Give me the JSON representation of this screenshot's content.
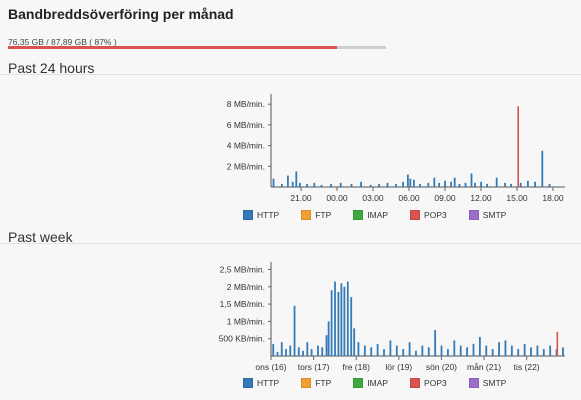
{
  "title": "Bandbreddsöverföring per månad",
  "usage": {
    "text": "76,35 GB / 87,89 GB ( 87% )",
    "percent": 87
  },
  "sections": {
    "day_heading": "Past 24 hours",
    "week_heading": "Past week"
  },
  "legend": [
    {
      "label": "HTTP",
      "color": "#337ab7"
    },
    {
      "label": "FTP",
      "color": "#f0a030"
    },
    {
      "label": "IMAP",
      "color": "#3fa83f"
    },
    {
      "label": "POP3",
      "color": "#d9534f"
    },
    {
      "label": "SMTP",
      "color": "#9b6cc9"
    }
  ],
  "chart_data": [
    {
      "type": "bar",
      "y_ticks": [
        "8 MB/min.",
        "6 MB/min.",
        "4 MB/min.",
        "2 MB/min."
      ],
      "y_tick_values": [
        8,
        6,
        4,
        2
      ],
      "ylim": [
        0,
        8.6
      ],
      "x_ticks": [
        "21.00",
        "00.00",
        "03.00",
        "06.00",
        "09.00",
        "12.00",
        "15.00",
        "18.00"
      ],
      "x_tick_positions": [
        2.5,
        5.5,
        8.5,
        11.5,
        14.5,
        17.5,
        20.5,
        23.5
      ],
      "xlim": [
        0,
        24.5
      ],
      "series": [
        {
          "name": "HTTP",
          "points": [
            [
              0.2,
              0.8
            ],
            [
              0.9,
              0.3
            ],
            [
              1.4,
              1.1
            ],
            [
              1.8,
              0.5
            ],
            [
              2.1,
              1.5
            ],
            [
              2.4,
              0.4
            ],
            [
              3.0,
              0.3
            ],
            [
              3.6,
              0.4
            ],
            [
              4.2,
              0.2
            ],
            [
              5.0,
              0.3
            ],
            [
              5.8,
              0.4
            ],
            [
              6.7,
              0.3
            ],
            [
              7.5,
              0.5
            ],
            [
              8.3,
              0.2
            ],
            [
              9.0,
              0.3
            ],
            [
              9.7,
              0.4
            ],
            [
              10.4,
              0.3
            ],
            [
              11.0,
              0.5
            ],
            [
              11.4,
              1.2
            ],
            [
              11.6,
              0.8
            ],
            [
              11.9,
              0.7
            ],
            [
              12.4,
              0.3
            ],
            [
              13.1,
              0.4
            ],
            [
              13.6,
              0.9
            ],
            [
              14.0,
              0.4
            ],
            [
              14.5,
              0.6
            ],
            [
              15.0,
              0.5
            ],
            [
              15.3,
              0.9
            ],
            [
              15.7,
              0.3
            ],
            [
              16.2,
              0.4
            ],
            [
              16.7,
              1.3
            ],
            [
              17.0,
              0.4
            ],
            [
              17.5,
              0.5
            ],
            [
              18.0,
              0.3
            ],
            [
              18.8,
              0.9
            ],
            [
              19.5,
              0.4
            ],
            [
              20.0,
              0.3
            ],
            [
              20.8,
              0.4
            ],
            [
              21.4,
              0.6
            ],
            [
              22.0,
              0.5
            ],
            [
              22.6,
              3.5
            ],
            [
              23.2,
              0.3
            ]
          ]
        },
        {
          "name": "POP3",
          "points": [
            [
              20.6,
              7.8
            ]
          ]
        }
      ]
    },
    {
      "type": "bar",
      "y_ticks": [
        "2,5 MB/min.",
        "2 MB/min.",
        "1,5 MB/min.",
        "1 MB/min.",
        "500 KB/min."
      ],
      "y_tick_values": [
        2.5,
        2,
        1.5,
        1,
        0.5
      ],
      "ylim": [
        0,
        2.6
      ],
      "x_ticks": [
        "ons (16)",
        "tors (17)",
        "fre (18)",
        "lör (19)",
        "sön (20)",
        "mån (21)",
        "tis (22)"
      ],
      "x_tick_positions": [
        0,
        1,
        2,
        3,
        4,
        5,
        6
      ],
      "xlim": [
        0,
        6.9
      ],
      "series": [
        {
          "name": "HTTP",
          "points": [
            [
              0.05,
              0.35
            ],
            [
              0.15,
              0.12
            ],
            [
              0.25,
              0.4
            ],
            [
              0.35,
              0.2
            ],
            [
              0.45,
              0.3
            ],
            [
              0.55,
              1.45
            ],
            [
              0.65,
              0.25
            ],
            [
              0.75,
              0.15
            ],
            [
              0.85,
              0.4
            ],
            [
              0.95,
              0.2
            ],
            [
              1.1,
              0.3
            ],
            [
              1.2,
              0.25
            ],
            [
              1.3,
              0.6
            ],
            [
              1.35,
              1.0
            ],
            [
              1.42,
              1.9
            ],
            [
              1.5,
              2.15
            ],
            [
              1.58,
              1.85
            ],
            [
              1.65,
              2.1
            ],
            [
              1.72,
              2.0
            ],
            [
              1.8,
              2.15
            ],
            [
              1.88,
              1.7
            ],
            [
              1.95,
              0.8
            ],
            [
              2.05,
              0.4
            ],
            [
              2.2,
              0.3
            ],
            [
              2.35,
              0.25
            ],
            [
              2.5,
              0.35
            ],
            [
              2.65,
              0.2
            ],
            [
              2.8,
              0.45
            ],
            [
              2.95,
              0.3
            ],
            [
              3.1,
              0.2
            ],
            [
              3.25,
              0.4
            ],
            [
              3.4,
              0.15
            ],
            [
              3.55,
              0.3
            ],
            [
              3.7,
              0.25
            ],
            [
              3.85,
              0.75
            ],
            [
              4.0,
              0.3
            ],
            [
              4.15,
              0.2
            ],
            [
              4.3,
              0.45
            ],
            [
              4.45,
              0.3
            ],
            [
              4.6,
              0.25
            ],
            [
              4.75,
              0.35
            ],
            [
              4.9,
              0.55
            ],
            [
              5.05,
              0.3
            ],
            [
              5.2,
              0.2
            ],
            [
              5.35,
              0.4
            ],
            [
              5.5,
              0.45
            ],
            [
              5.65,
              0.3
            ],
            [
              5.8,
              0.2
            ],
            [
              5.95,
              0.35
            ],
            [
              6.1,
              0.25
            ],
            [
              6.25,
              0.3
            ],
            [
              6.4,
              0.2
            ],
            [
              6.55,
              0.3
            ],
            [
              6.7,
              0.2
            ],
            [
              6.85,
              0.25
            ]
          ]
        },
        {
          "name": "POP3",
          "points": [
            [
              6.72,
              0.7
            ]
          ]
        }
      ]
    }
  ]
}
